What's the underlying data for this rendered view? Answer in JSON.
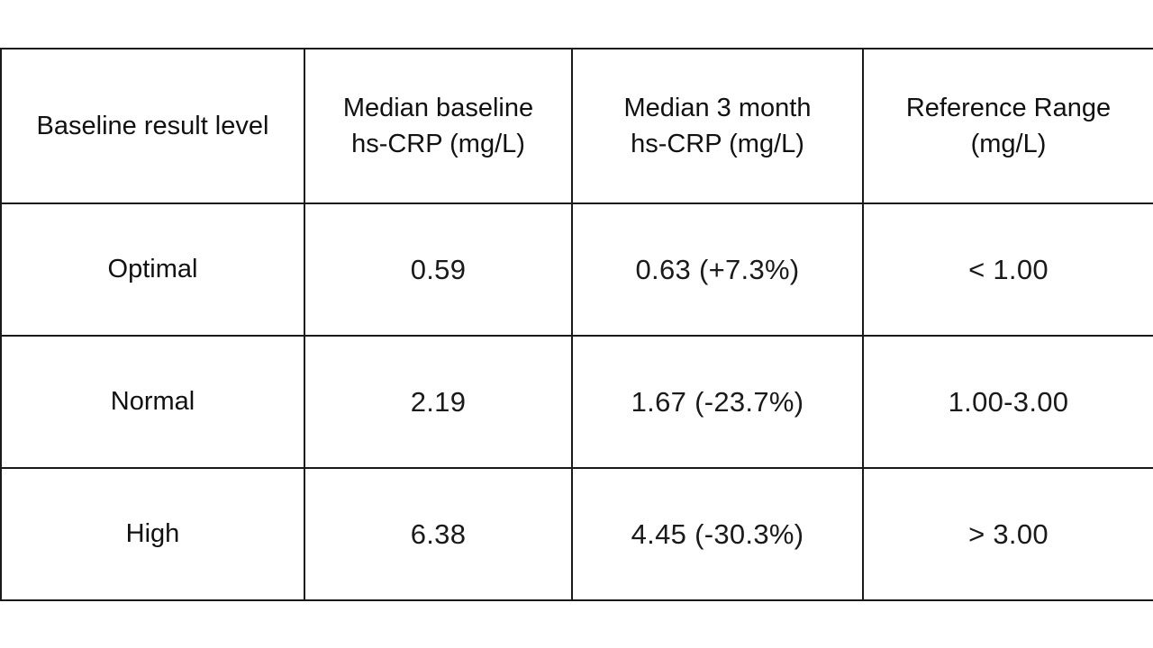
{
  "table": {
    "headers": [
      [
        "Baseline result level"
      ],
      [
        "Median baseline",
        "hs-CRP (mg/L)"
      ],
      [
        "Median 3 month",
        "hs-CRP (mg/L)"
      ],
      [
        "Reference Range",
        "(mg/L)"
      ]
    ],
    "rows": [
      {
        "label": "Optimal",
        "baseline": "0.59",
        "three_month": "0.63 (+7.3%)",
        "reference": "< 1.00"
      },
      {
        "label": "Normal",
        "baseline": "2.19",
        "three_month": "1.67 (-23.7%)",
        "reference": "1.00-3.00"
      },
      {
        "label": "High",
        "baseline": "6.38",
        "three_month": "4.45 (-30.3%)",
        "reference": "> 3.00"
      }
    ]
  },
  "chart_data": {
    "type": "table",
    "columns": [
      "Baseline result level",
      "Median baseline hs-CRP (mg/L)",
      "Median 3 month hs-CRP (mg/L)",
      "Reference Range (mg/L)"
    ],
    "rows": [
      [
        "Optimal",
        0.59,
        0.63,
        "< 1.00"
      ],
      [
        "Normal",
        2.19,
        1.67,
        "1.00-3.00"
      ],
      [
        "High",
        6.38,
        4.45,
        "> 3.00"
      ]
    ],
    "percent_change": [
      7.3,
      -23.7,
      -30.3
    ]
  }
}
